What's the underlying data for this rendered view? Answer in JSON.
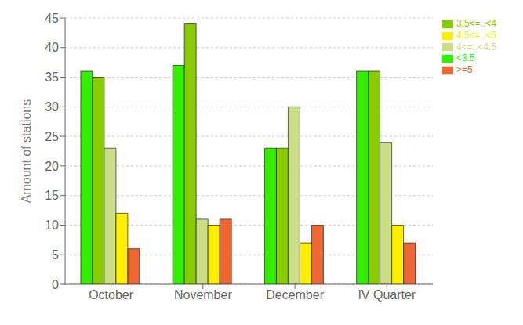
{
  "chart_data": {
    "type": "bar",
    "categories": [
      "October",
      "November",
      "December",
      "IV Quarter"
    ],
    "series": [
      {
        "name": "<3.5",
        "color": "#33EE00",
        "values": [
          36,
          37,
          23,
          36
        ]
      },
      {
        "name": "3.5<=..<4",
        "color": "#88CC00",
        "values": [
          35,
          44,
          23,
          36
        ]
      },
      {
        "name": "4<=..<4.5",
        "color": "#CCDD88",
        "values": [
          23,
          11,
          30,
          24
        ]
      },
      {
        "name": "4.5<=..<5",
        "color": "#FFEE00",
        "values": [
          12,
          10,
          7,
          10
        ]
      },
      {
        "name": ">=5",
        "color": "#EE6633",
        "values": [
          6,
          11,
          10,
          7
        ]
      }
    ],
    "ylabel": "Amount of stations",
    "ylim": [
      0,
      45
    ],
    "yticks": [
      0,
      5,
      10,
      15,
      20,
      25,
      30,
      35,
      40,
      45
    ],
    "grid": true,
    "legend": "upper right"
  }
}
